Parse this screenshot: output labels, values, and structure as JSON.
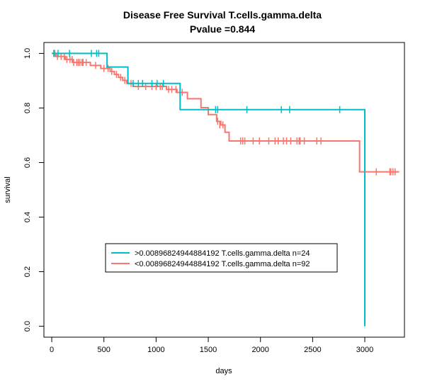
{
  "chart_data": {
    "type": "line",
    "title": "Disease Free Survival T.cells.gamma.delta",
    "subtitle": "Pvalue =0.844",
    "xlabel": "days",
    "ylabel": "survival",
    "xlim": [
      -75,
      3380
    ],
    "ylim": [
      -0.04,
      1.04
    ],
    "x_ticks": [
      0,
      500,
      1000,
      1500,
      2000,
      2500,
      3000
    ],
    "y_ticks": [
      0.0,
      0.2,
      0.4,
      0.6,
      0.8,
      1.0
    ],
    "x_tick_labels": [
      "0",
      "500",
      "1000",
      "1500",
      "2000",
      "2500",
      "3000"
    ],
    "y_tick_labels": [
      "0.0",
      "0.2",
      "0.4",
      "0.6",
      "0.8",
      "1.0"
    ],
    "legend_placement": "center-bottom",
    "series": [
      {
        "name": ">0.00896824944884192 T.cells.gamma.delta n=24",
        "color": "#00BFC4",
        "steps": [
          [
            0,
            1.0
          ],
          [
            530,
            0.95
          ],
          [
            730,
            0.89
          ],
          [
            1230,
            0.794
          ],
          [
            3000,
            0.0
          ]
        ],
        "end_x": 3000,
        "censor_times": [
          20,
          60,
          170,
          380,
          430,
          450,
          780,
          830,
          870,
          960,
          1010,
          1070,
          1570,
          1590,
          1870,
          2200,
          2280,
          2760
        ],
        "censor_values": [
          1.0,
          1.0,
          1.0,
          1.0,
          1.0,
          1.0,
          0.89,
          0.89,
          0.89,
          0.89,
          0.89,
          0.89,
          0.794,
          0.794,
          0.794,
          0.794,
          0.794,
          0.794
        ]
      },
      {
        "name": "<0.00896824944884192 T.cells.gamma.delta n=92",
        "color": "#F8766D",
        "steps": [
          [
            0,
            1.0
          ],
          [
            40,
            0.989
          ],
          [
            130,
            0.978
          ],
          [
            200,
            0.967
          ],
          [
            370,
            0.956
          ],
          [
            470,
            0.945
          ],
          [
            560,
            0.934
          ],
          [
            600,
            0.923
          ],
          [
            640,
            0.912
          ],
          [
            680,
            0.901
          ],
          [
            720,
            0.89
          ],
          [
            780,
            0.879
          ],
          [
            1100,
            0.868
          ],
          [
            1200,
            0.857
          ],
          [
            1300,
            0.834
          ],
          [
            1430,
            0.801
          ],
          [
            1500,
            0.776
          ],
          [
            1580,
            0.751
          ],
          [
            1620,
            0.738
          ],
          [
            1660,
            0.711
          ],
          [
            1700,
            0.679
          ],
          [
            2950,
            0.566
          ]
        ],
        "end_x": 3330,
        "censor_times": [
          20,
          30,
          55,
          90,
          120,
          145,
          175,
          195,
          210,
          240,
          255,
          270,
          290,
          300,
          330,
          420,
          500,
          540,
          575,
          620,
          660,
          700,
          760,
          830,
          900,
          960,
          1000,
          1040,
          1060,
          1120,
          1150,
          1190,
          1250,
          1590,
          1610,
          1640,
          1810,
          1830,
          1850,
          1930,
          1990,
          2080,
          2140,
          2170,
          2220,
          2250,
          2290,
          2350,
          2370,
          2380,
          2420,
          2540,
          2580,
          3110,
          3240,
          3250,
          3270,
          3290
        ],
        "censor_values": [
          1.0,
          1.0,
          0.989,
          0.989,
          0.989,
          0.978,
          0.978,
          0.978,
          0.967,
          0.967,
          0.967,
          0.967,
          0.967,
          0.967,
          0.967,
          0.956,
          0.945,
          0.945,
          0.934,
          0.923,
          0.912,
          0.901,
          0.89,
          0.879,
          0.879,
          0.879,
          0.879,
          0.879,
          0.879,
          0.868,
          0.868,
          0.868,
          0.857,
          0.751,
          0.738,
          0.738,
          0.679,
          0.679,
          0.679,
          0.679,
          0.679,
          0.679,
          0.679,
          0.679,
          0.679,
          0.679,
          0.679,
          0.679,
          0.679,
          0.679,
          0.679,
          0.679,
          0.679,
          0.566,
          0.566,
          0.566,
          0.566,
          0.566
        ]
      }
    ]
  }
}
